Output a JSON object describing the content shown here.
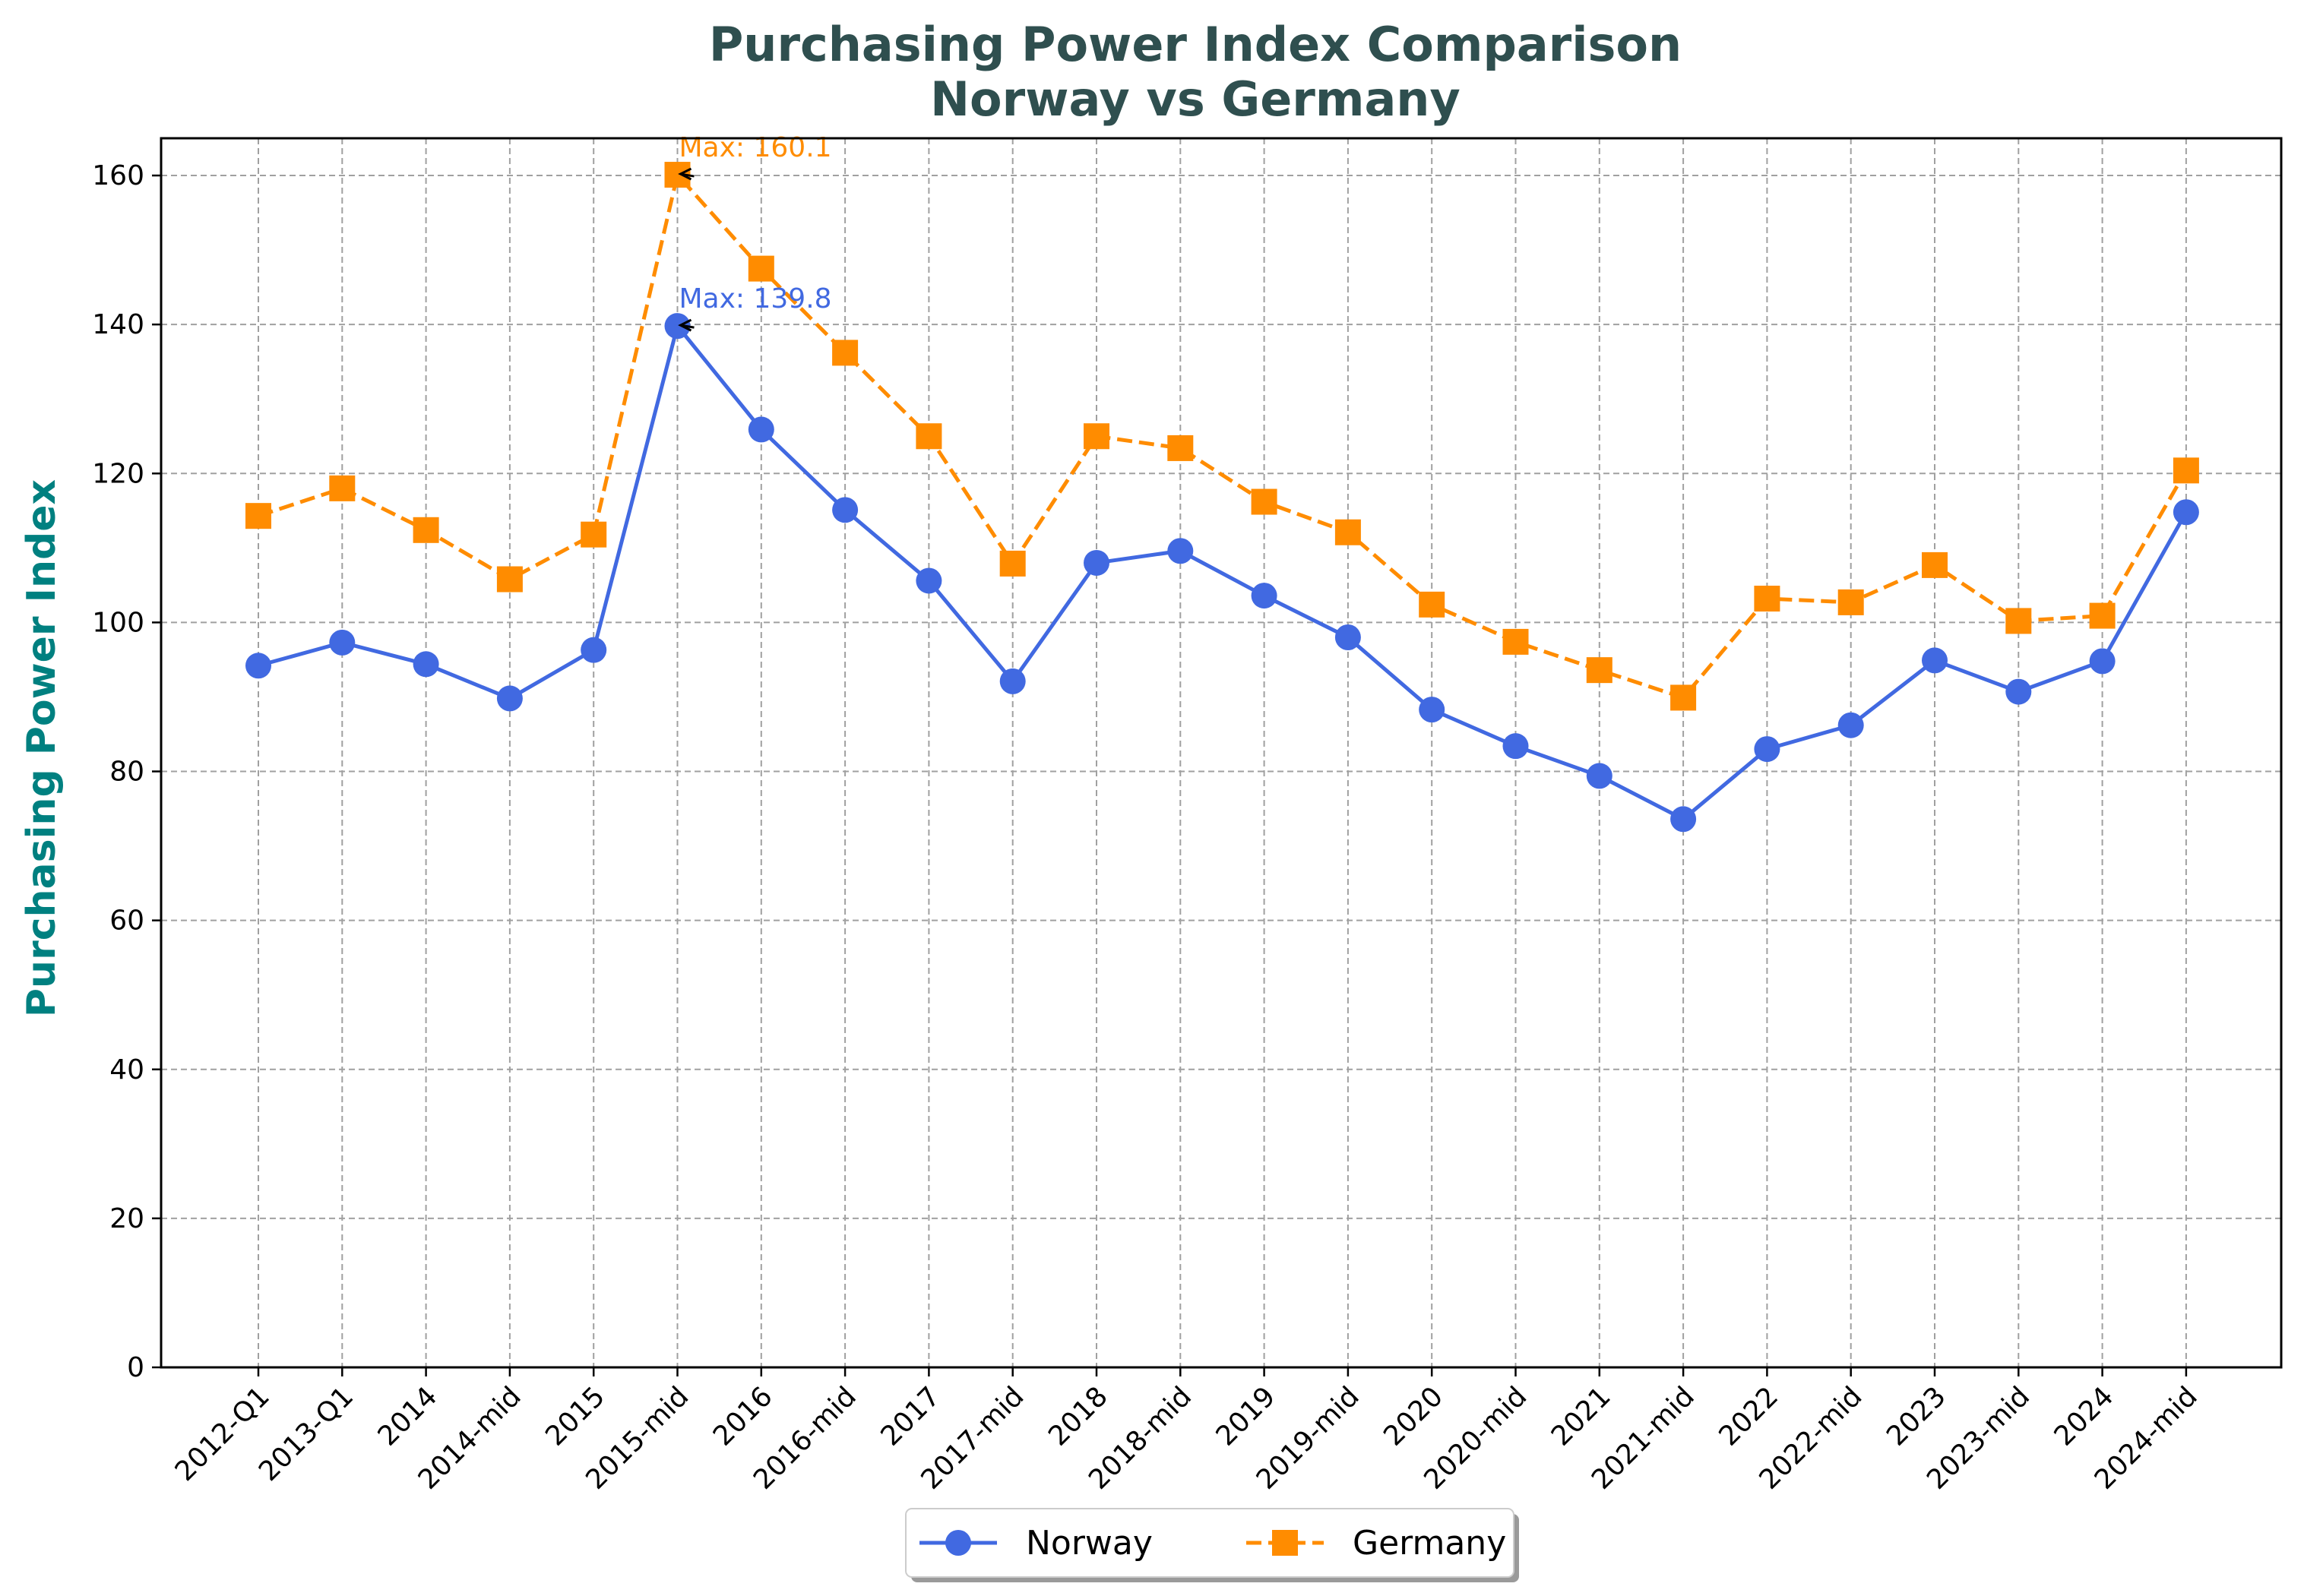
{
  "chart_data": {
    "type": "line",
    "title": "Purchasing Power Index Comparison",
    "subtitle": "Norway vs Germany",
    "xlabel": "",
    "ylabel": "Purchasing Power Index",
    "ylim": [
      0,
      165
    ],
    "yticks": [
      0,
      20,
      40,
      60,
      80,
      100,
      120,
      140,
      160
    ],
    "grid": true,
    "legend_position": "bottom-center",
    "categories": [
      "2012-Q1",
      "2013-Q1",
      "2014",
      "2014-mid",
      "2015",
      "2015-mid",
      "2016",
      "2016-mid",
      "2017",
      "2017-mid",
      "2018",
      "2018-mid",
      "2019",
      "2019-mid",
      "2020",
      "2020-mid",
      "2021",
      "2021-mid",
      "2022",
      "2022-mid",
      "2023",
      "2023-mid",
      "2024",
      "2024-mid"
    ],
    "series": [
      {
        "name": "Norway",
        "color": "#4169e1",
        "marker": "circle",
        "line_style": "solid",
        "values": [
          94.2,
          97.3,
          94.4,
          89.8,
          96.3,
          139.8,
          125.9,
          115.1,
          105.6,
          92.1,
          108.0,
          109.6,
          103.6,
          98.0,
          88.3,
          83.4,
          79.4,
          73.6,
          83.0,
          86.2,
          94.9,
          90.7,
          94.8,
          114.8
        ]
      },
      {
        "name": "Germany",
        "color": "#ff8c00",
        "marker": "square",
        "line_style": "dashed",
        "values": [
          114.3,
          118.0,
          112.4,
          105.8,
          111.8,
          160.1,
          147.5,
          136.2,
          125.0,
          107.9,
          125.0,
          123.4,
          116.2,
          112.1,
          102.4,
          97.4,
          93.6,
          89.9,
          103.2,
          102.7,
          107.7,
          100.2,
          100.9,
          120.4
        ]
      }
    ],
    "annotations": [
      {
        "text": "Max: 139.8",
        "series": "Norway",
        "category": "2015-mid",
        "value": 139.8,
        "color": "#4169e1"
      },
      {
        "text": "Max: 160.1",
        "series": "Germany",
        "category": "2015-mid",
        "value": 160.1,
        "color": "#ff8c00"
      }
    ]
  }
}
